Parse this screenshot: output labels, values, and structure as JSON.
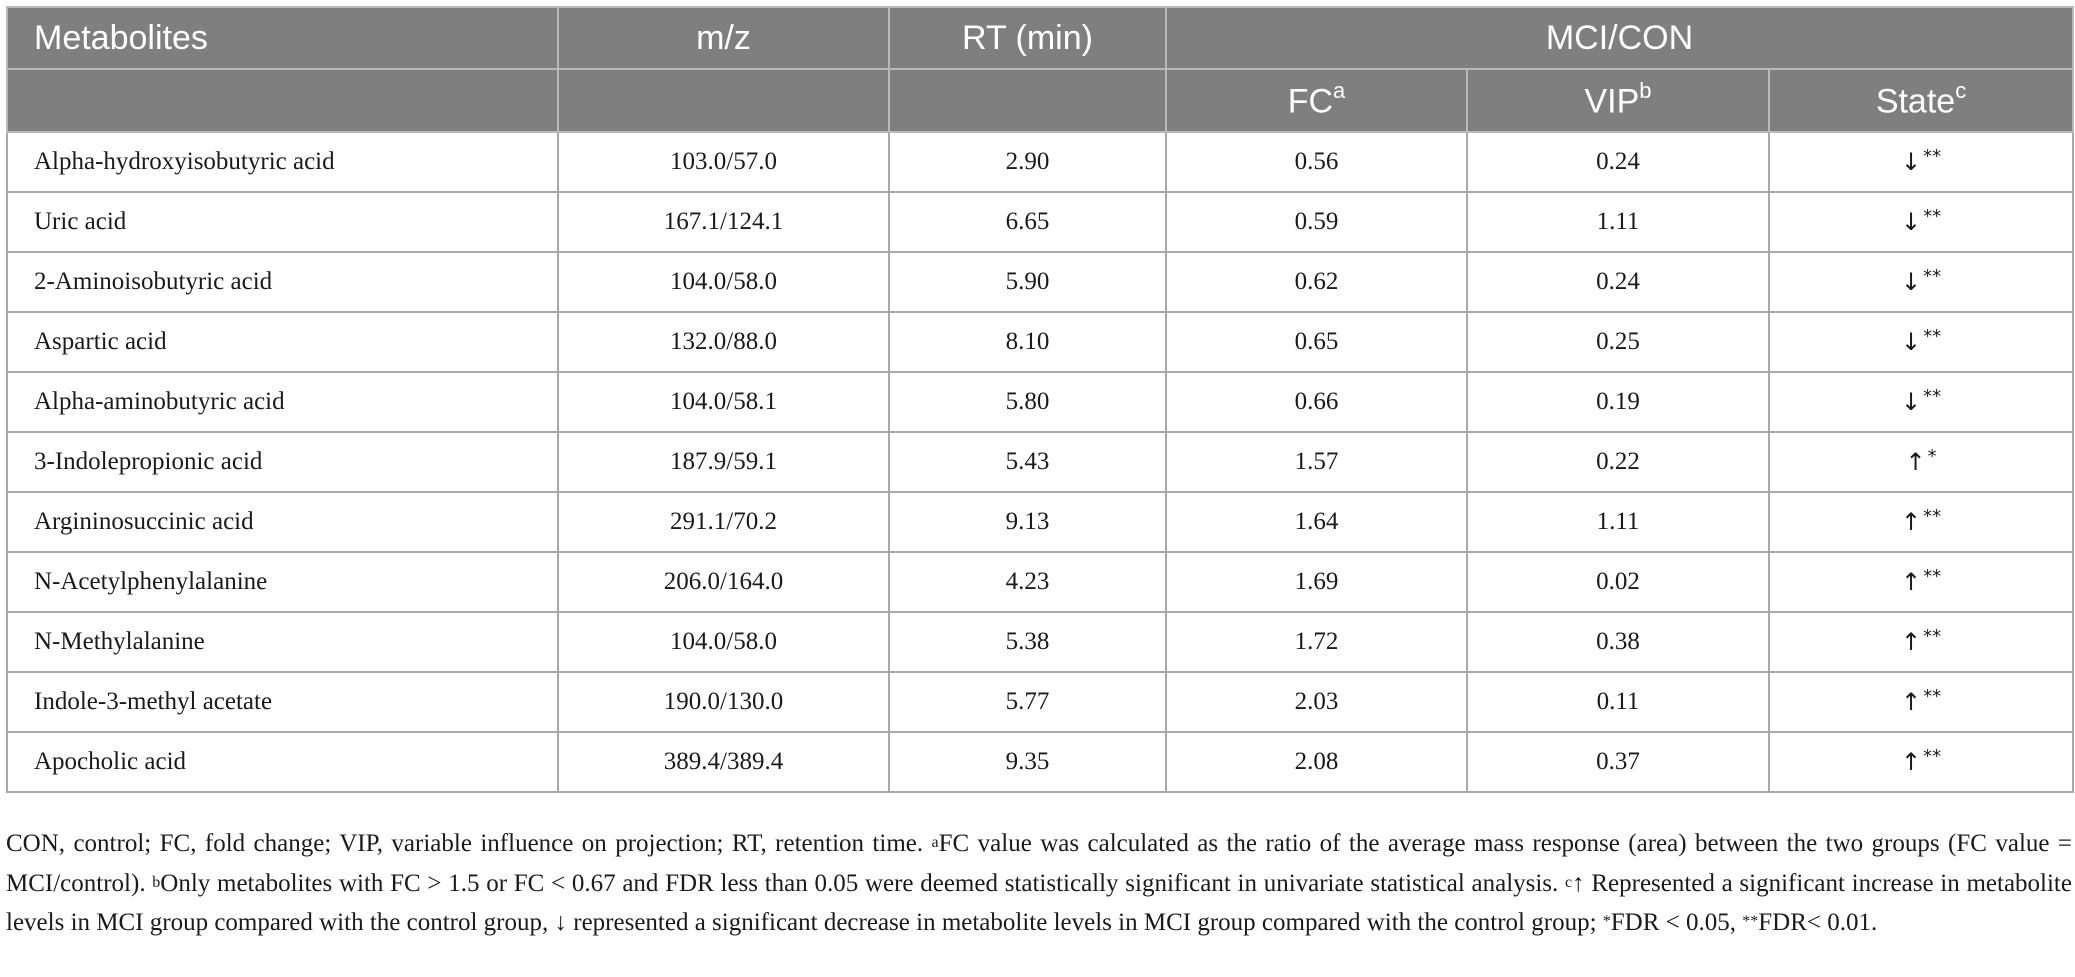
{
  "table": {
    "headers": {
      "metabolites": "Metabolites",
      "mz": "m/z",
      "rt": "RT (min)",
      "group": "MCI/CON",
      "fc": "FC",
      "fc_sup": "a",
      "vip": "VIP",
      "vip_sup": "b",
      "state": "State",
      "state_sup": "c"
    },
    "rows": [
      {
        "name": "Alpha-hydroxyisobutyric acid",
        "mz": "103.0/57.0",
        "rt": "2.90",
        "fc": "0.56",
        "vip": "0.24",
        "arrow": "↓",
        "stars": "**"
      },
      {
        "name": "Uric acid",
        "mz": "167.1/124.1",
        "rt": "6.65",
        "fc": "0.59",
        "vip": "1.11",
        "arrow": "↓",
        "stars": "**"
      },
      {
        "name": "2-Aminoisobutyric acid",
        "mz": "104.0/58.0",
        "rt": "5.90",
        "fc": "0.62",
        "vip": "0.24",
        "arrow": "↓",
        "stars": "**"
      },
      {
        "name": "Aspartic acid",
        "mz": "132.0/88.0",
        "rt": "8.10",
        "fc": "0.65",
        "vip": "0.25",
        "arrow": "↓",
        "stars": "**"
      },
      {
        "name": "Alpha-aminobutyric acid",
        "mz": "104.0/58.1",
        "rt": "5.80",
        "fc": "0.66",
        "vip": "0.19",
        "arrow": "↓",
        "stars": "**"
      },
      {
        "name": "3-Indolepropionic acid",
        "mz": "187.9/59.1",
        "rt": "5.43",
        "fc": "1.57",
        "vip": "0.22",
        "arrow": "↑",
        "stars": "*"
      },
      {
        "name": "Argininosuccinic acid",
        "mz": "291.1/70.2",
        "rt": "9.13",
        "fc": "1.64",
        "vip": "1.11",
        "arrow": "↑",
        "stars": "**"
      },
      {
        "name": "N-Acetylphenylalanine",
        "mz": "206.0/164.0",
        "rt": "4.23",
        "fc": "1.69",
        "vip": "0.02",
        "arrow": "↑",
        "stars": "**"
      },
      {
        "name": "N-Methylalanine",
        "mz": "104.0/58.0",
        "rt": "5.38",
        "fc": "1.72",
        "vip": "0.38",
        "arrow": "↑",
        "stars": "**"
      },
      {
        "name": "Indole-3-methyl acetate",
        "mz": "190.0/130.0",
        "rt": "5.77",
        "fc": "2.03",
        "vip": "0.11",
        "arrow": "↑",
        "stars": "**"
      },
      {
        "name": "Apocholic acid",
        "mz": "389.4/389.4",
        "rt": "9.35",
        "fc": "2.08",
        "vip": "0.37",
        "arrow": "↑",
        "stars": "**"
      }
    ]
  },
  "footnote": {
    "abbrev": "CON, control; FC, fold change; VIP, variable influence on projection; RT, retention time. ",
    "a_mark": "a",
    "a_text": "FC value was calculated as the ratio of the average mass response (area) between the two groups (FC value = MCI/control). ",
    "b_mark": "b",
    "b_text": "Only metabolites with FC > 1.5 or FC < 0.67 and FDR less than 0.05 were deemed statistically significant in univariate statistical analysis. ",
    "c_mark": "c",
    "c_text": "↑ Represented a significant increase in metabolite levels in MCI group compared with the control group, ↓ represented a significant decrease in metabolite levels in MCI group compared with the control group; ",
    "star1_mark": "*",
    "star1_text": "FDR < 0.05, ",
    "star2_mark": "**",
    "star2_text": "FDR< 0.01."
  }
}
